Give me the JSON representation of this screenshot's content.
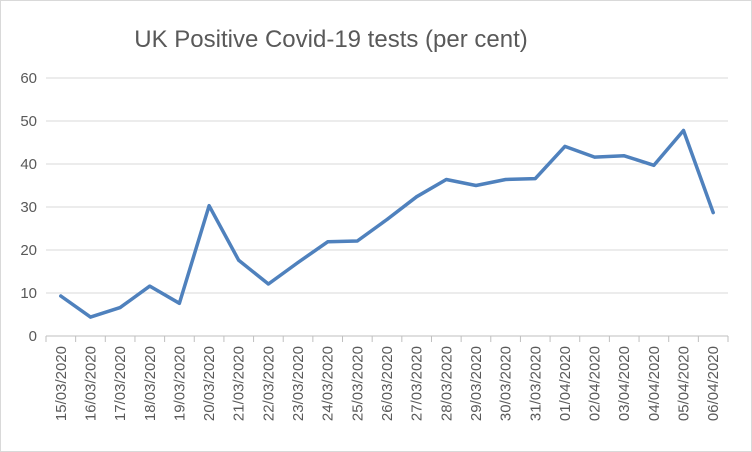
{
  "chart_data": {
    "type": "line",
    "title": "UK Positive Covid-19 tests (per cent)",
    "xlabel": "",
    "ylabel": "",
    "ylim": [
      0,
      60
    ],
    "yticks": [
      0,
      10,
      20,
      30,
      40,
      50,
      60
    ],
    "grid": true,
    "legend": "none",
    "categories": [
      "15/03/2020",
      "16/03/2020",
      "17/03/2020",
      "18/03/2020",
      "19/03/2020",
      "20/03/2020",
      "21/03/2020",
      "22/03/2020",
      "23/03/2020",
      "24/03/2020",
      "25/03/2020",
      "26/03/2020",
      "27/03/2020",
      "28/03/2020",
      "29/03/2020",
      "30/03/2020",
      "31/03/2020",
      "01/04/2020",
      "02/04/2020",
      "03/04/2020",
      "04/04/2020",
      "05/04/2020",
      "06/04/2020"
    ],
    "series": [
      {
        "color": "#4f81bd",
        "values": [
          9.3,
          4.4,
          6.6,
          11.6,
          7.6,
          30.3,
          17.6,
          12.1,
          17.1,
          21.9,
          22.1,
          27.1,
          32.4,
          36.4,
          35.0,
          36.4,
          36.6,
          44.1,
          41.6,
          41.9,
          39.7,
          47.8,
          28.7
        ]
      }
    ],
    "colors": {
      "gridline": "#d9d9d9",
      "axis": "#bfbfbf",
      "text": "#595959",
      "line": "#4f81bd"
    }
  }
}
